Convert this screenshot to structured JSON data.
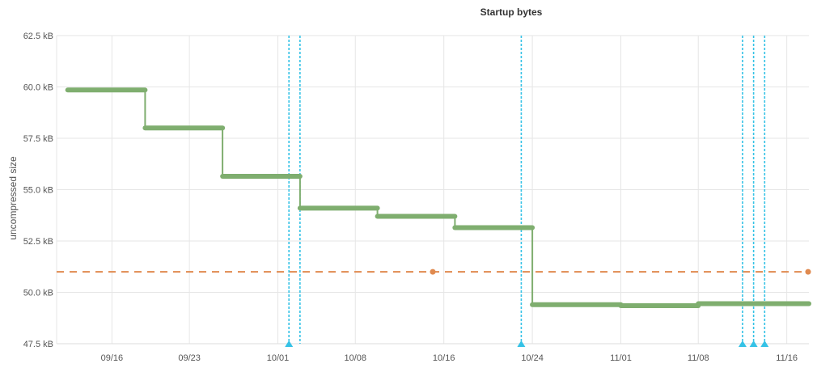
{
  "chart_data": {
    "type": "line",
    "title": "Startup bytes",
    "xlabel": "",
    "ylabel": "uncompressed size",
    "x_axis": {
      "type": "date",
      "range": [
        "2023-09-11",
        "2023-11-18"
      ],
      "ticks": [
        {
          "date": "2023-09-16",
          "label": "09/16"
        },
        {
          "date": "2023-09-23",
          "label": "09/23"
        },
        {
          "date": "2023-10-01",
          "label": "10/01"
        },
        {
          "date": "2023-10-08",
          "label": "10/08"
        },
        {
          "date": "2023-10-16",
          "label": "10/16"
        },
        {
          "date": "2023-10-24",
          "label": "10/24"
        },
        {
          "date": "2023-11-01",
          "label": "11/01"
        },
        {
          "date": "2023-11-08",
          "label": "11/08"
        },
        {
          "date": "2023-11-16",
          "label": "11/16"
        }
      ]
    },
    "y_axis": {
      "unit": "kB",
      "range": [
        47.5,
        62.5
      ],
      "ticks": [
        {
          "value": 47.5,
          "label": "47.5 kB"
        },
        {
          "value": 50.0,
          "label": "50.0 kB"
        },
        {
          "value": 52.5,
          "label": "52.5 kB"
        },
        {
          "value": 55.0,
          "label": "55.0 kB"
        },
        {
          "value": 57.5,
          "label": "57.5 kB"
        },
        {
          "value": 60.0,
          "label": "60.0 kB"
        },
        {
          "value": 62.5,
          "label": "62.5 kB"
        }
      ]
    },
    "grid": true,
    "series": [
      {
        "color": "#7fae6f",
        "kind": "step",
        "points": [
          {
            "x": "2023-09-12",
            "y": 59.85
          },
          {
            "x": "2023-09-19",
            "y": 59.85
          },
          {
            "x": "2023-09-19",
            "y": 58.0
          },
          {
            "x": "2023-09-26",
            "y": 58.0
          },
          {
            "x": "2023-09-26",
            "y": 55.65
          },
          {
            "x": "2023-10-03",
            "y": 55.65
          },
          {
            "x": "2023-10-03",
            "y": 54.1
          },
          {
            "x": "2023-10-10",
            "y": 54.1
          },
          {
            "x": "2023-10-10",
            "y": 53.7
          },
          {
            "x": "2023-10-17",
            "y": 53.7
          },
          {
            "x": "2023-10-17",
            "y": 53.15
          },
          {
            "x": "2023-10-24",
            "y": 53.15
          },
          {
            "x": "2023-10-24",
            "y": 49.4
          },
          {
            "x": "2023-11-01",
            "y": 49.4
          },
          {
            "x": "2023-11-01",
            "y": 49.35
          },
          {
            "x": "2023-11-08",
            "y": 49.35
          },
          {
            "x": "2023-11-08",
            "y": 49.45
          },
          {
            "x": "2023-11-18",
            "y": 49.45
          }
        ]
      },
      {
        "color": "#e08a4f",
        "kind": "baseline",
        "y": 51.0,
        "marker_dates": [
          "2023-10-15",
          "2023-11-18"
        ]
      }
    ],
    "annotations": {
      "color": "#35c2e6",
      "vertical_lines": [
        "2023-10-02",
        "2023-10-03",
        "2023-10-23",
        "2023-11-12",
        "2023-11-13",
        "2023-11-14"
      ],
      "markers": [
        "2023-10-02",
        "2023-10-23",
        "2023-11-12",
        "2023-11-13",
        "2023-11-14"
      ]
    }
  }
}
